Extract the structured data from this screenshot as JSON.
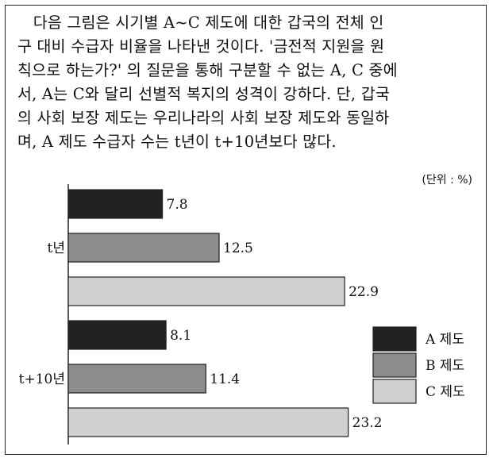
{
  "question": {
    "text": "　다음 그림은 시기별 A~C 제도에 대한 갑국의 전체 인\n구 대비 수급자 비율을 나타낸 것이다. '금전적 지원을 원\n칙으로 하는가?' 의 질문을 통해 구분할 수 없는 A, C 중에\n서, A는 C와 달리 선별적 복지의 성격이 강하다. 단, 갑국\n의 사회 보장 제도는 우리나라의 사회 보장 제도와 동일하\n며, A 제도 수급자 수는 t년이 t+10년보다 많다."
  },
  "chart_data": {
    "type": "bar",
    "orientation": "horizontal",
    "unit_label": "(단위 : %)",
    "categories": [
      "t년",
      "t+10년"
    ],
    "series": [
      {
        "name": "A 제도",
        "values": [
          7.8,
          8.1
        ],
        "color": "#222222"
      },
      {
        "name": "B 제도",
        "values": [
          12.5,
          11.4
        ],
        "color": "#8c8c8c"
      },
      {
        "name": "C 제도",
        "values": [
          22.9,
          23.2
        ],
        "color": "#cfcfcf"
      }
    ],
    "value_labels": [
      [
        "7.8",
        "12.5",
        "22.9"
      ],
      [
        "8.1",
        "11.4",
        "23.2"
      ]
    ],
    "legend_position": "right",
    "grid": false
  }
}
